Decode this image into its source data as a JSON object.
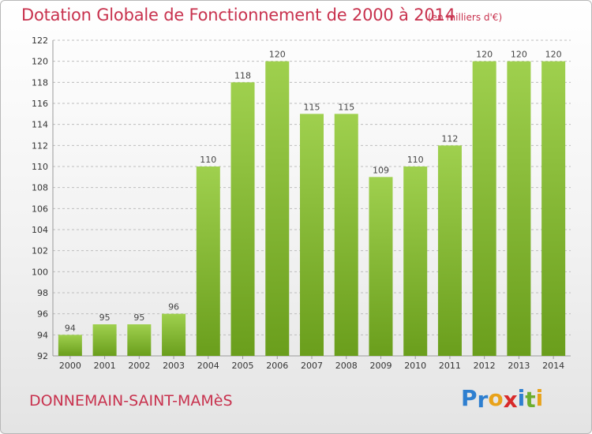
{
  "header": {
    "title": "Dotation Globale de Fonctionnement de 2000 à 2014",
    "subtitle": "(en milliers d'€)"
  },
  "footer": {
    "commune": "DONNEMAIN-SAINT-MAMèS",
    "logo_letters": [
      "P",
      "r",
      "o",
      "x",
      "i",
      "t",
      "i"
    ]
  },
  "colors": {
    "text_accent": "#c8324e",
    "bar_top": "#9fd04e",
    "bar_bottom": "#6a9e1c",
    "logo": [
      "#2e7fd0",
      "#2e7fd0",
      "#e8a21a",
      "#d82a2a",
      "#2e7fd0",
      "#6dae2e",
      "#e8a21a"
    ]
  },
  "chart_data": {
    "type": "bar",
    "title": "Dotation Globale de Fonctionnement de 2000 à 2014",
    "subtitle": "(en milliers d'€)",
    "categories": [
      "2000",
      "2001",
      "2002",
      "2003",
      "2004",
      "2005",
      "2006",
      "2007",
      "2008",
      "2009",
      "2010",
      "2011",
      "2012",
      "2013",
      "2014"
    ],
    "values": [
      94,
      95,
      95,
      96,
      110,
      118,
      120,
      115,
      115,
      109,
      110,
      112,
      120,
      120,
      120
    ],
    "ylim": [
      92,
      122
    ],
    "yticks": [
      92,
      94,
      96,
      98,
      100,
      102,
      104,
      106,
      108,
      110,
      112,
      114,
      116,
      118,
      120,
      122
    ],
    "grid": "horizontal dashed",
    "legend": "none",
    "data_labels": true
  }
}
